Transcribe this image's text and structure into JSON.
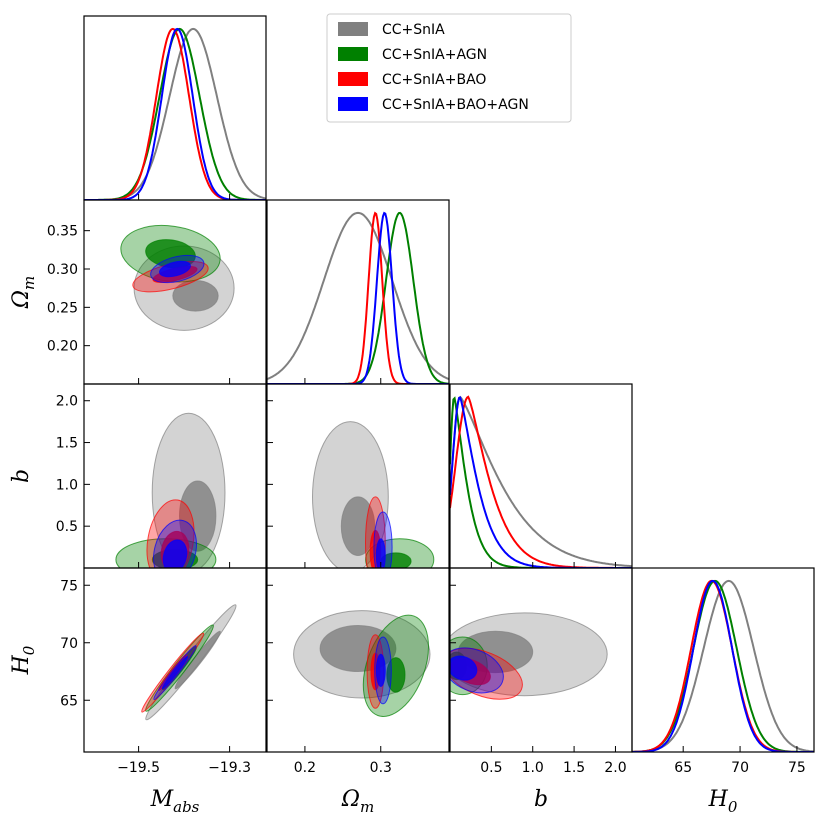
{
  "chart_data": {
    "type": "corner",
    "title": "",
    "parameters": [
      {
        "key": "M",
        "label_main": "M",
        "label_sub": "abs",
        "range": [
          -19.62,
          -19.22
        ],
        "ticks": [
          -19.5,
          -19.3
        ],
        "tick_labels": [
          "−19.5",
          "−19.3"
        ]
      },
      {
        "key": "Om",
        "label_main": "Ω",
        "label_sub": "m",
        "range": [
          0.15,
          0.39
        ],
        "ticks": [
          0.2,
          0.25,
          0.3,
          0.35
        ],
        "tick_labels": [
          "0.20",
          "0.25",
          "0.30",
          "0.35"
        ],
        "bottom_ticks": [
          0.2,
          0.3
        ],
        "bottom_tick_labels": [
          "0.2",
          "0.3"
        ]
      },
      {
        "key": "b",
        "label_main": "b",
        "label_sub": "",
        "range": [
          0.0,
          2.2
        ],
        "ticks": [
          0.5,
          1.0,
          1.5,
          2.0
        ],
        "tick_labels": [
          "0.5",
          "1.0",
          "1.5",
          "2.0"
        ]
      },
      {
        "key": "H0",
        "label_main": "H",
        "label_sub": "0",
        "range": [
          60.5,
          76.5
        ],
        "ticks": [
          65,
          70,
          75
        ],
        "tick_labels": [
          "65",
          "70",
          "75"
        ]
      }
    ],
    "legend": {
      "position": "top-right",
      "entries": [
        "CC+SnIA",
        "CC+SnIA+AGN",
        "CC+SnIA+BAO",
        "CC+SnIA+BAO+AGN"
      ]
    },
    "series": [
      {
        "name": "CC+SnIA",
        "color": "#808080",
        "marginals": {
          "M": {
            "mean": -19.38,
            "sd": 0.052
          },
          "Om": {
            "mean": 0.27,
            "sd": 0.045
          },
          "b": {
            "mode": 0.12,
            "tail": 0.65
          },
          "H0": {
            "mean": 69.0,
            "sd": 2.2
          }
        },
        "contours": {
          "Om_M": {
            "in_center": [
              -19.375,
              0.265
            ],
            "in_radius": [
              0.05,
              0.02
            ],
            "in_angle": 0,
            "out_center": [
              -19.4,
              0.275
            ],
            "out_radius": [
              0.11,
              0.055
            ],
            "out_angle": 0
          },
          "b_M": {
            "in_center": [
              -19.37,
              0.62
            ],
            "in_radius": [
              0.04,
              0.42
            ],
            "in_angle": 0,
            "out_center": [
              -19.39,
              0.9
            ],
            "out_radius": [
              0.08,
              0.95
            ],
            "out_angle": 0
          },
          "b_Om": {
            "in_center": [
              0.27,
              0.5
            ],
            "in_radius": [
              0.022,
              0.35
            ],
            "in_angle": 0,
            "out_center": [
              0.26,
              0.85
            ],
            "out_radius": [
              0.05,
              0.9
            ],
            "out_angle": 0
          },
          "H0_M": {
            "in_center": [
              -19.37,
              68.5
            ],
            "in_radius": [
              0.08,
              0.35
            ],
            "in_angle": 52,
            "out_center": [
              -19.385,
              68.3
            ],
            "out_radius": [
              0.16,
              0.6
            ],
            "out_angle": 52
          },
          "H0_Om": {
            "in_center": [
              0.27,
              69.5
            ],
            "in_radius": [
              0.05,
              2.0
            ],
            "in_angle": 0,
            "out_center": [
              0.275,
              69.0
            ],
            "out_radius": [
              0.09,
              3.8
            ],
            "out_angle": 0
          },
          "H0_b": {
            "in_center": [
              0.55,
              69.2
            ],
            "in_radius": [
              0.45,
              1.8
            ],
            "in_angle": 0,
            "out_center": [
              0.9,
              69.0
            ],
            "out_radius": [
              1.0,
              3.6
            ],
            "out_angle": 0
          }
        }
      },
      {
        "name": "CC+SnIA+AGN",
        "color": "#008000",
        "marginals": {
          "M": {
            "mean": -19.41,
            "sd": 0.044
          },
          "Om": {
            "mean": 0.325,
            "sd": 0.018
          },
          "b": {
            "mode": 0.05,
            "tail": 0.2
          },
          "H0": {
            "mean": 67.8,
            "sd": 1.9
          }
        },
        "contours": {
          "Om_M": {
            "in_center": [
              -19.43,
              0.32
            ],
            "in_radius": [
              0.055,
              0.018
            ],
            "in_angle": -8,
            "out_center": [
              -19.43,
              0.32
            ],
            "out_radius": [
              0.11,
              0.036
            ],
            "out_angle": -8
          },
          "b_M": {
            "in_center": [
              -19.42,
              0.1
            ],
            "in_radius": [
              0.05,
              0.12
            ],
            "in_angle": 0,
            "out_center": [
              -19.44,
              0.1
            ],
            "out_radius": [
              0.11,
              0.25
            ],
            "out_angle": 0
          },
          "b_Om": {
            "in_center": [
              0.32,
              0.08
            ],
            "in_radius": [
              0.02,
              0.1
            ],
            "in_angle": 0,
            "out_center": [
              0.325,
              0.1
            ],
            "out_radius": [
              0.045,
              0.25
            ],
            "out_angle": 0
          },
          "H0_M": {
            "in_center": [
              -19.41,
              67.8
            ],
            "in_radius": [
              0.06,
              0.3
            ],
            "in_angle": 52,
            "out_center": [
              -19.41,
              67.8
            ],
            "out_radius": [
              0.12,
              0.5
            ],
            "out_angle": 52
          },
          "H0_Om": {
            "in_center": [
              0.32,
              67.2
            ],
            "in_radius": [
              0.012,
              1.5
            ],
            "in_angle": 0,
            "out_center": [
              0.32,
              68.0
            ],
            "out_radius": [
              0.038,
              4.6
            ],
            "out_angle": -20
          },
          "H0_b": {
            "in_center": [
              0.08,
              68.0
            ],
            "in_radius": [
              0.12,
              1.2
            ],
            "in_angle": 0,
            "out_center": [
              0.15,
              68.0
            ],
            "out_radius": [
              0.3,
              2.5
            ],
            "out_angle": 0
          }
        }
      },
      {
        "name": "CC+SnIA+BAO",
        "color": "#ff0000",
        "marginals": {
          "M": {
            "mean": -19.425,
            "sd": 0.036
          },
          "Om": {
            "mean": 0.293,
            "sd": 0.009
          },
          "b": {
            "mode": 0.22,
            "tail": 0.35
          },
          "H0": {
            "mean": 67.5,
            "sd": 1.8
          }
        },
        "contours": {
          "Om_M": {
            "in_center": [
              -19.42,
              0.293
            ],
            "in_radius": [
              0.05,
              0.008
            ],
            "in_angle": 14,
            "out_center": [
              -19.43,
              0.29
            ],
            "out_radius": [
              0.085,
              0.016
            ],
            "out_angle": 14
          },
          "b_M": {
            "in_center": [
              -19.42,
              0.2
            ],
            "in_radius": [
              0.03,
              0.24
            ],
            "in_angle": -10,
            "out_center": [
              -19.43,
              0.32
            ],
            "out_radius": [
              0.05,
              0.5
            ],
            "out_angle": -10
          },
          "b_Om": {
            "in_center": [
              0.293,
              0.2
            ],
            "in_radius": [
              0.007,
              0.25
            ],
            "in_angle": 0,
            "out_center": [
              0.293,
              0.3
            ],
            "out_radius": [
              0.013,
              0.55
            ],
            "out_angle": 0
          },
          "H0_M": {
            "in_center": [
              -19.425,
              67.4
            ],
            "in_radius": [
              0.05,
              0.22
            ],
            "in_angle": 52,
            "out_center": [
              -19.425,
              67.4
            ],
            "out_radius": [
              0.11,
              0.4
            ],
            "out_angle": 52
          },
          "H0_Om": {
            "in_center": [
              0.293,
              67.5
            ],
            "in_radius": [
              0.006,
              1.6
            ],
            "in_angle": 0,
            "out_center": [
              0.293,
              67.5
            ],
            "out_radius": [
              0.011,
              3.2
            ],
            "out_angle": 0
          },
          "H0_b": {
            "in_center": [
              0.25,
              67.5
            ],
            "in_radius": [
              0.25,
              1.0
            ],
            "in_angle": -22,
            "out_center": [
              0.4,
              67.3
            ],
            "out_radius": [
              0.5,
              1.9
            ],
            "out_angle": -22
          }
        }
      },
      {
        "name": "CC+SnIA+BAO+AGN",
        "color": "#0000ff",
        "marginals": {
          "M": {
            "mean": -19.415,
            "sd": 0.034
          },
          "Om": {
            "mean": 0.305,
            "sd": 0.01
          },
          "b": {
            "mode": 0.12,
            "tail": 0.28
          },
          "H0": {
            "mean": 67.6,
            "sd": 1.7
          }
        },
        "contours": {
          "Om_M": {
            "in_center": [
              -19.42,
              0.3
            ],
            "in_radius": [
              0.035,
              0.009
            ],
            "in_angle": 14,
            "out_center": [
              -19.415,
              0.3
            ],
            "out_radius": [
              0.06,
              0.016
            ],
            "out_angle": 14
          },
          "b_M": {
            "in_center": [
              -19.42,
              0.14
            ],
            "in_radius": [
              0.025,
              0.2
            ],
            "in_angle": -15,
            "out_center": [
              -19.42,
              0.2
            ],
            "out_radius": [
              0.045,
              0.38
            ],
            "out_angle": -15
          },
          "b_Om": {
            "in_center": [
              0.3,
              0.15
            ],
            "in_radius": [
              0.006,
              0.2
            ],
            "in_angle": 0,
            "out_center": [
              0.303,
              0.25
            ],
            "out_radius": [
              0.012,
              0.42
            ],
            "out_angle": 0
          },
          "H0_M": {
            "in_center": [
              -19.42,
              67.4
            ],
            "in_radius": [
              0.045,
              0.18
            ],
            "in_angle": 52,
            "out_center": [
              -19.42,
              67.4
            ],
            "out_radius": [
              0.075,
              0.3
            ],
            "out_angle": 52
          },
          "H0_Om": {
            "in_center": [
              0.3,
              67.6
            ],
            "in_radius": [
              0.006,
              1.4
            ],
            "in_angle": 0,
            "out_center": [
              0.303,
              67.6
            ],
            "out_radius": [
              0.011,
              2.9
            ],
            "out_angle": 0
          },
          "H0_b": {
            "in_center": [
              0.15,
              67.8
            ],
            "in_radius": [
              0.18,
              1.0
            ],
            "in_angle": -22,
            "out_center": [
              0.28,
              67.6
            ],
            "out_radius": [
              0.38,
              1.8
            ],
            "out_angle": -22
          }
        }
      }
    ]
  }
}
